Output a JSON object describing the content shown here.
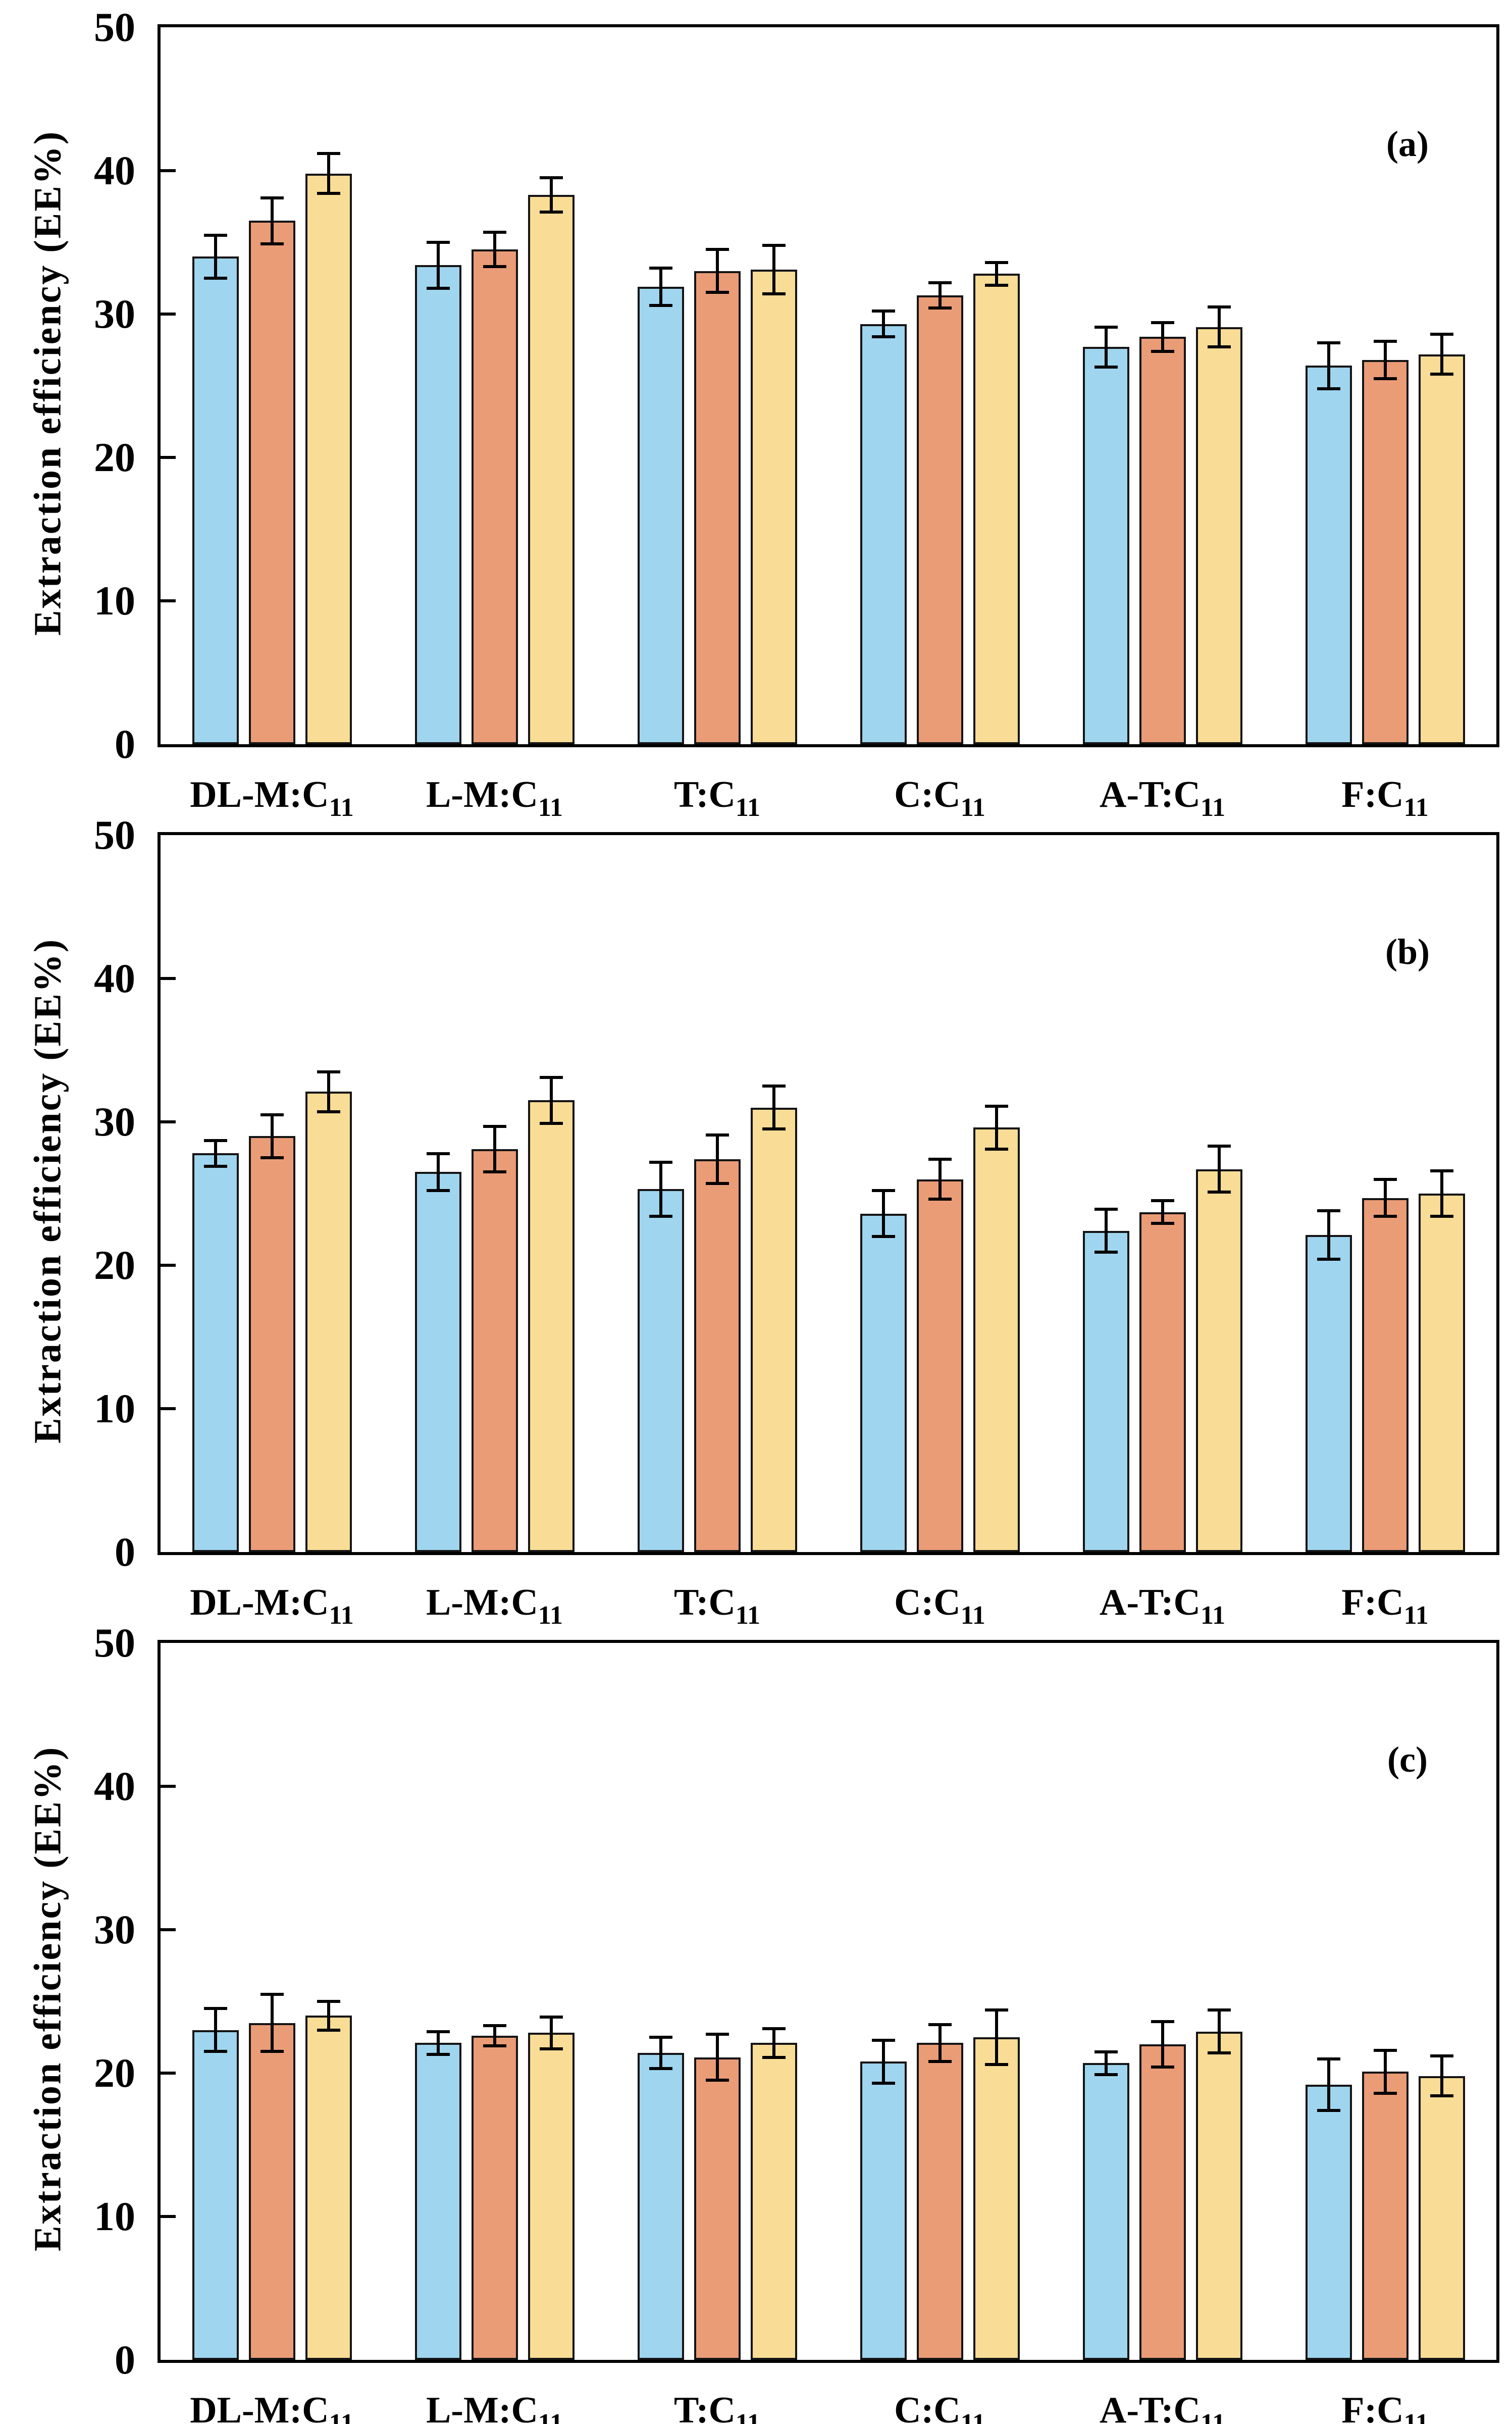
{
  "chart_data": {
    "type": "bar",
    "ylabel": "Extraction efficiency (EE%)",
    "ylim": [
      0,
      50
    ],
    "yticks": [
      0,
      10,
      20,
      30,
      40,
      50
    ],
    "grid": "off",
    "legend": "none",
    "background_color": "#FFFFFF",
    "frame_color": "#000000",
    "error_bar_color": "#000000",
    "bar_border_color": "#141414",
    "categories": [
      {
        "base": "DL-M:C",
        "sub": "11"
      },
      {
        "base": "L-M:C",
        "sub": "11"
      },
      {
        "base": "T:C",
        "sub": "11"
      },
      {
        "base": "C:C",
        "sub": "11"
      },
      {
        "base": "A-T:C",
        "sub": "11"
      },
      {
        "base": "F:C",
        "sub": "11"
      }
    ],
    "series_styles": [
      {
        "name": "blue",
        "fill": "#9FD5EF"
      },
      {
        "name": "orange",
        "fill": "#EA9C77"
      },
      {
        "name": "yellow",
        "fill": "#F9DC96"
      }
    ],
    "panels": [
      {
        "label": "(a)",
        "series": [
          {
            "name": "blue",
            "values": [
              34.0,
              33.4,
              31.9,
              29.3,
              27.7,
              26.4
            ],
            "errors": [
              1.6,
              1.7,
              1.4,
              1.0,
              1.5,
              1.7
            ]
          },
          {
            "name": "orange",
            "values": [
              36.5,
              34.5,
              33.0,
              31.3,
              28.4,
              26.8
            ],
            "errors": [
              1.7,
              1.3,
              1.6,
              1.0,
              1.1,
              1.4
            ]
          },
          {
            "name": "yellow",
            "values": [
              39.8,
              38.3,
              33.1,
              32.8,
              29.1,
              27.2
            ],
            "errors": [
              1.5,
              1.3,
              1.8,
              0.9,
              1.5,
              1.5
            ]
          }
        ]
      },
      {
        "label": "(b)",
        "series": [
          {
            "name": "blue",
            "values": [
              27.8,
              26.5,
              25.3,
              23.6,
              22.4,
              22.1
            ],
            "errors": [
              1.0,
              1.4,
              2.0,
              1.7,
              1.6,
              1.8
            ]
          },
          {
            "name": "orange",
            "values": [
              29.0,
              28.1,
              27.4,
              26.0,
              23.7,
              24.7
            ],
            "errors": [
              1.6,
              1.7,
              1.8,
              1.5,
              0.9,
              1.4
            ]
          },
          {
            "name": "yellow",
            "values": [
              32.1,
              31.5,
              31.0,
              29.6,
              26.7,
              25.0
            ],
            "errors": [
              1.5,
              1.7,
              1.6,
              1.6,
              1.7,
              1.7
            ]
          }
        ]
      },
      {
        "label": "(c)",
        "series": [
          {
            "name": "blue",
            "values": [
              23.0,
              22.1,
              21.4,
              20.8,
              20.7,
              19.2
            ],
            "errors": [
              1.6,
              0.9,
              1.2,
              1.6,
              0.9,
              1.9
            ]
          },
          {
            "name": "orange",
            "values": [
              23.5,
              22.6,
              21.1,
              22.1,
              22.0,
              20.1
            ],
            "errors": [
              2.1,
              0.8,
              1.7,
              1.4,
              1.7,
              1.6
            ]
          },
          {
            "name": "yellow",
            "values": [
              24.0,
              22.8,
              22.1,
              22.5,
              22.9,
              19.8
            ],
            "errors": [
              1.1,
              1.2,
              1.1,
              2.0,
              1.6,
              1.5
            ]
          }
        ]
      }
    ]
  }
}
